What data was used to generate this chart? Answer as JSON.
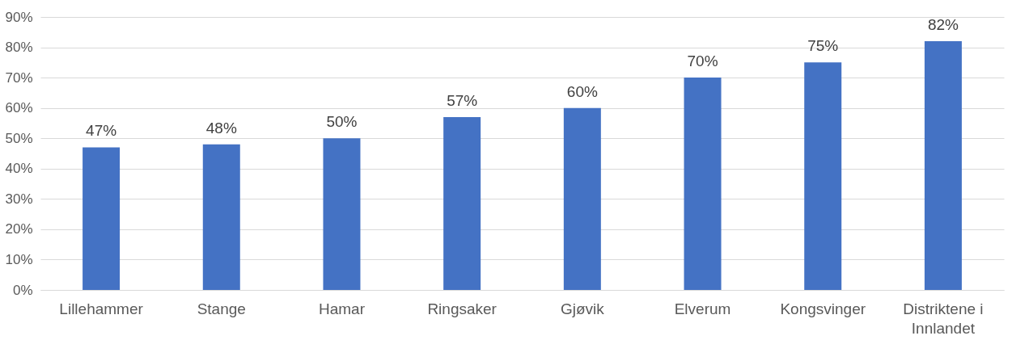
{
  "chart_data": {
    "type": "bar",
    "categories": [
      "Lillehammer",
      "Stange",
      "Hamar",
      "Ringsaker",
      "Gjøvik",
      "Elverum",
      "Kongsvinger",
      "Distriktene i Innlandet"
    ],
    "values": [
      47,
      48,
      50,
      57,
      60,
      70,
      75,
      82
    ],
    "value_labels": [
      "47%",
      "48%",
      "50%",
      "57%",
      "60%",
      "70%",
      "75%",
      "82%"
    ],
    "color": "#4472c4",
    "ylim": [
      0,
      90
    ],
    "yticks": [
      {
        "value": 0,
        "label": "0%"
      },
      {
        "value": 10,
        "label": "10%"
      },
      {
        "value": 20,
        "label": "20%"
      },
      {
        "value": 30,
        "label": "30%"
      },
      {
        "value": 40,
        "label": "40%"
      },
      {
        "value": 50,
        "label": "50%"
      },
      {
        "value": 60,
        "label": "60%"
      },
      {
        "value": 70,
        "label": "70%"
      },
      {
        "value": 80,
        "label": "80%"
      },
      {
        "value": 90,
        "label": "90%"
      }
    ],
    "grid": "y"
  }
}
